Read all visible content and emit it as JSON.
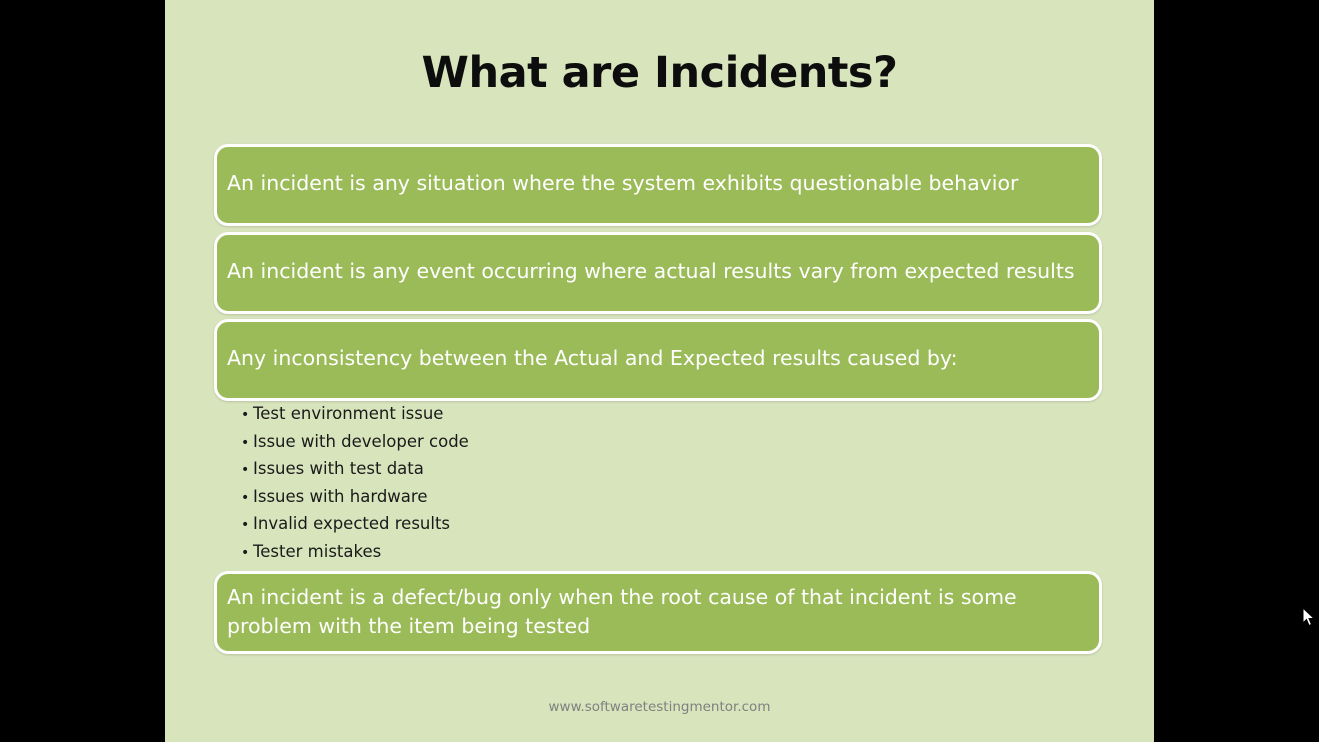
{
  "slide": {
    "title": "What are Incidents?",
    "boxes": [
      "An incident is any situation where the system exhibits questionable behavior",
      "An incident is any event occurring where actual results vary from expected results",
      "Any inconsistency between the Actual and Expected results caused by:",
      "An incident is a defect/bug only when the root cause of that incident is some problem with the item being tested"
    ],
    "bullets": [
      "Test environment issue",
      "Issue with developer code",
      "Issues with test data",
      "Issues with hardware",
      "Invalid expected results",
      "Tester mistakes"
    ],
    "bullet_glyph": "•",
    "footer": "www.softwaretestingmentor.com"
  },
  "colors": {
    "slide_background": "#d8e4bc",
    "box_fill": "#9bbb59",
    "box_border": "#ffffff",
    "outer_background": "#000000"
  },
  "icons": {
    "cursor": "mouse-pointer-icon"
  }
}
